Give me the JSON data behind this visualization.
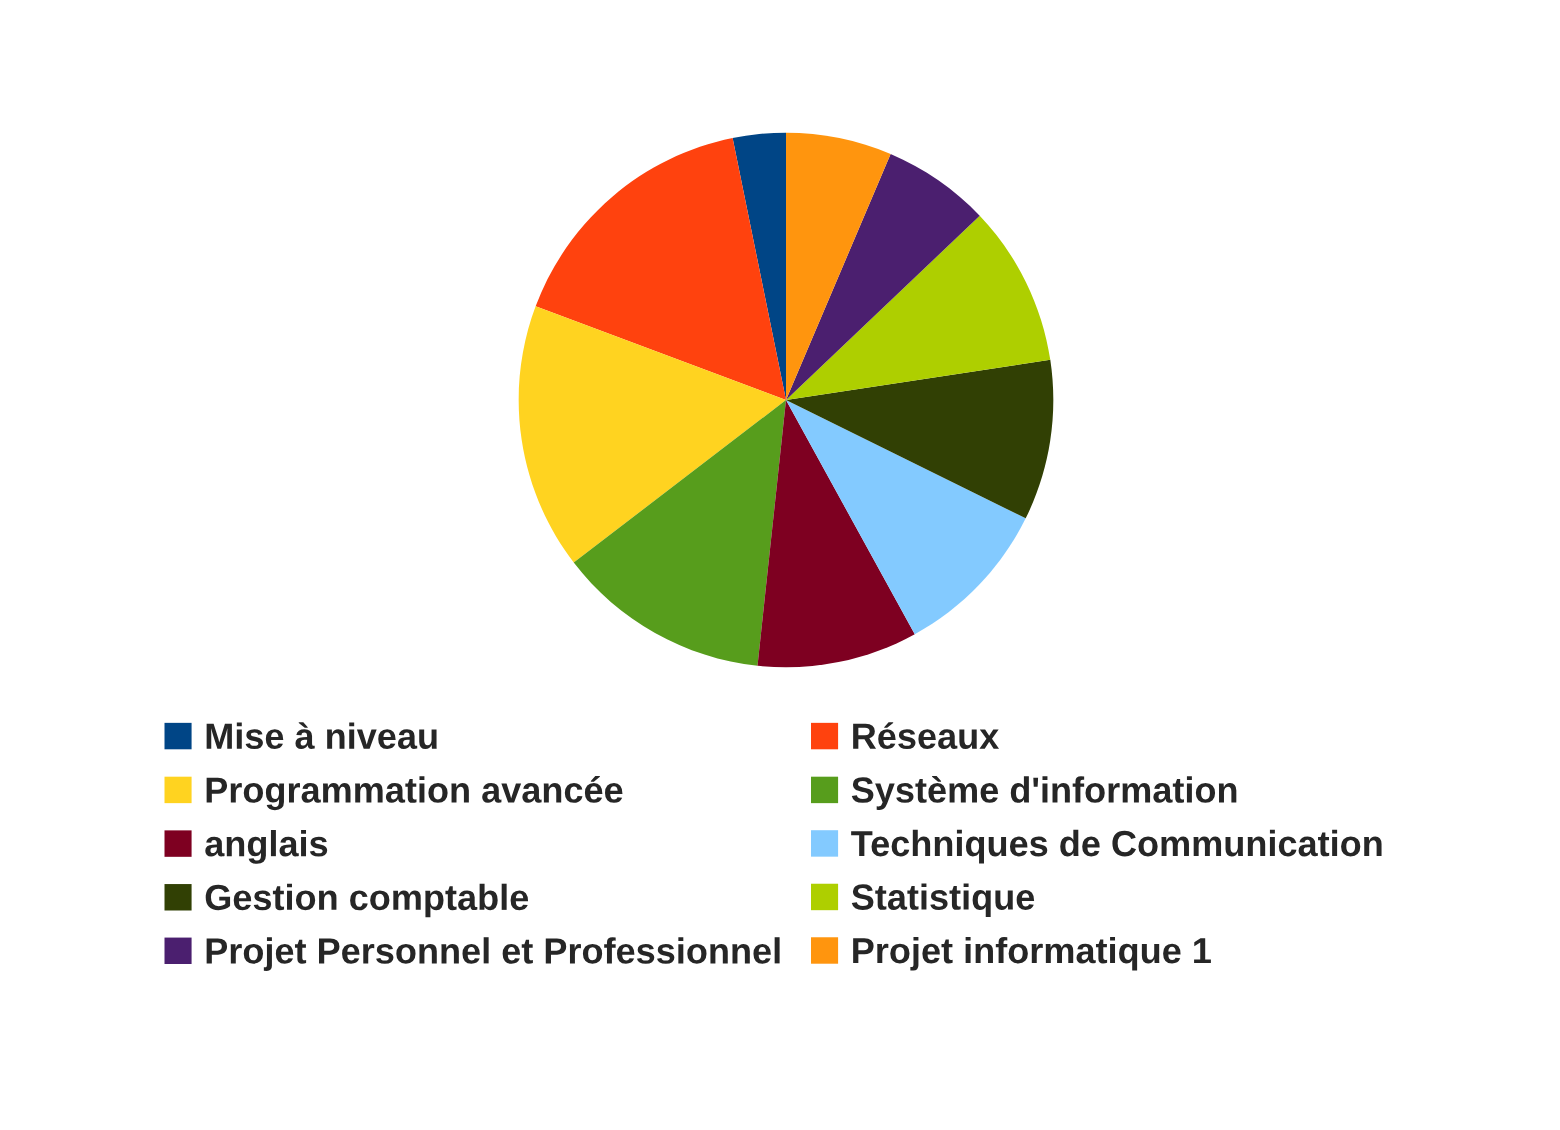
{
  "chart_data": {
    "type": "pie",
    "categories": [
      "Mise à niveau",
      "Réseaux",
      "Programmation avancée",
      "Système d'information",
      "anglais",
      "Techniques de Communication",
      "Gestion comptable",
      "Statistique",
      "Projet Personnel et Professionnel",
      "Projet informatique 1"
    ],
    "values": [
      3.2,
      16.1,
      16.1,
      12.9,
      9.7,
      9.7,
      9.7,
      9.7,
      6.5,
      6.4
    ],
    "colors": [
      "#004586",
      "#ff420e",
      "#ffd320",
      "#579d1c",
      "#7e0021",
      "#83caff",
      "#314004",
      "#aecf00",
      "#4b1f6f",
      "#ff950e"
    ],
    "legend": "bottom"
  }
}
